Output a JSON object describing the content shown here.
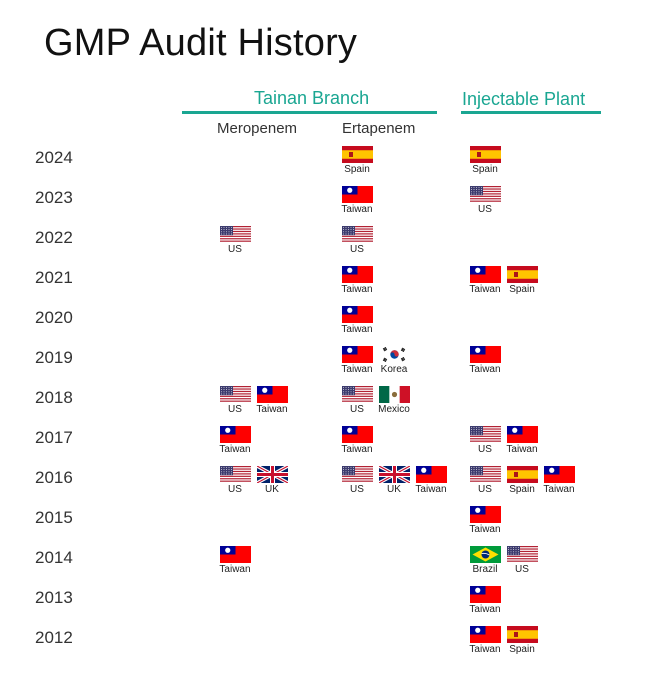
{
  "title": "GMP Audit History",
  "groups": {
    "tainan": "Tainan Branch",
    "injectable": "Injectable Plant"
  },
  "columns": {
    "meropenem": "Meropenem",
    "ertapenem": "Ertapenem"
  },
  "years": [
    "2024",
    "2023",
    "2022",
    "2021",
    "2020",
    "2019",
    "2018",
    "2017",
    "2016",
    "2015",
    "2014",
    "2013",
    "2012"
  ],
  "colors": {
    "accent": "#1aa692"
  },
  "audits": [
    {
      "year": "2024",
      "column": "ertapenem",
      "country": "Spain"
    },
    {
      "year": "2024",
      "column": "injectable",
      "country": "Spain"
    },
    {
      "year": "2023",
      "column": "ertapenem",
      "country": "Taiwan"
    },
    {
      "year": "2023",
      "column": "injectable",
      "country": "US"
    },
    {
      "year": "2022",
      "column": "meropenem",
      "country": "US"
    },
    {
      "year": "2022",
      "column": "ertapenem",
      "country": "US"
    },
    {
      "year": "2021",
      "column": "ertapenem",
      "country": "Taiwan"
    },
    {
      "year": "2021",
      "column": "injectable",
      "country": "Taiwan"
    },
    {
      "year": "2021",
      "column": "injectable",
      "country": "Spain"
    },
    {
      "year": "2020",
      "column": "ertapenem",
      "country": "Taiwan"
    },
    {
      "year": "2019",
      "column": "ertapenem",
      "country": "Taiwan"
    },
    {
      "year": "2019",
      "column": "ertapenem",
      "country": "Korea"
    },
    {
      "year": "2019",
      "column": "injectable",
      "country": "Taiwan"
    },
    {
      "year": "2018",
      "column": "meropenem",
      "country": "US"
    },
    {
      "year": "2018",
      "column": "meropenem",
      "country": "Taiwan"
    },
    {
      "year": "2018",
      "column": "ertapenem",
      "country": "US"
    },
    {
      "year": "2018",
      "column": "ertapenem",
      "country": "Mexico"
    },
    {
      "year": "2017",
      "column": "meropenem",
      "country": "Taiwan"
    },
    {
      "year": "2017",
      "column": "ertapenem",
      "country": "Taiwan"
    },
    {
      "year": "2017",
      "column": "injectable",
      "country": "US"
    },
    {
      "year": "2017",
      "column": "injectable",
      "country": "Taiwan"
    },
    {
      "year": "2016",
      "column": "meropenem",
      "country": "US"
    },
    {
      "year": "2016",
      "column": "meropenem",
      "country": "UK"
    },
    {
      "year": "2016",
      "column": "ertapenem",
      "country": "US"
    },
    {
      "year": "2016",
      "column": "ertapenem",
      "country": "UK"
    },
    {
      "year": "2016",
      "column": "ertapenem",
      "country": "Taiwan"
    },
    {
      "year": "2016",
      "column": "injectable",
      "country": "US"
    },
    {
      "year": "2016",
      "column": "injectable",
      "country": "Spain"
    },
    {
      "year": "2016",
      "column": "injectable",
      "country": "Taiwan"
    },
    {
      "year": "2015",
      "column": "injectable",
      "country": "Taiwan"
    },
    {
      "year": "2014",
      "column": "meropenem",
      "country": "Taiwan"
    },
    {
      "year": "2014",
      "column": "injectable",
      "country": "Brazil"
    },
    {
      "year": "2014",
      "column": "injectable",
      "country": "US"
    },
    {
      "year": "2013",
      "column": "injectable",
      "country": "Taiwan"
    },
    {
      "year": "2012",
      "column": "injectable",
      "country": "Taiwan"
    },
    {
      "year": "2012",
      "column": "injectable",
      "country": "Spain"
    }
  ]
}
